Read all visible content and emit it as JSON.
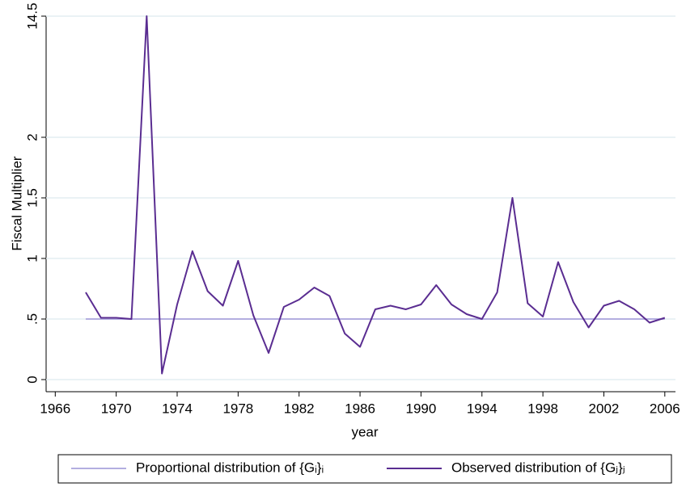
{
  "chart_data": {
    "type": "line",
    "x_label": "year",
    "y_label": "Fiscal Multiplier",
    "x": [
      1968,
      1969,
      1970,
      1971,
      1972,
      1973,
      1974,
      1975,
      1976,
      1977,
      1978,
      1979,
      1980,
      1981,
      1982,
      1983,
      1984,
      1985,
      1986,
      1987,
      1988,
      1989,
      1990,
      1991,
      1992,
      1993,
      1994,
      1995,
      1996,
      1997,
      1998,
      1999,
      2000,
      2001,
      2002,
      2003,
      2004,
      2005,
      2006
    ],
    "series": [
      {
        "name": "Proportional distribution of {Gᵢ}ᵢ",
        "color": "#b3aee0",
        "values": [
          0.5,
          0.5,
          0.5,
          0.5,
          0.5,
          0.5,
          0.5,
          0.5,
          0.5,
          0.5,
          0.5,
          0.5,
          0.5,
          0.5,
          0.5,
          0.5,
          0.5,
          0.5,
          0.5,
          0.5,
          0.5,
          0.5,
          0.5,
          0.5,
          0.5,
          0.5,
          0.5,
          0.5,
          0.5,
          0.5,
          0.5,
          0.5,
          0.5,
          0.5,
          0.5,
          0.5,
          0.5,
          0.5,
          0.5
        ]
      },
      {
        "name": "Observed distribution of {Gⱼ}ⱼ",
        "color": "#5a2d91",
        "values": [
          0.72,
          0.51,
          0.51,
          0.5,
          14.5,
          0.05,
          0.62,
          1.06,
          0.73,
          0.61,
          0.98,
          0.53,
          0.22,
          0.6,
          0.66,
          0.76,
          0.69,
          0.38,
          0.27,
          0.58,
          0.61,
          0.58,
          0.62,
          0.78,
          0.62,
          0.54,
          0.5,
          0.72,
          1.5,
          0.63,
          0.52,
          0.97,
          0.64,
          0.43,
          0.61,
          0.65,
          0.58,
          0.47,
          0.51
        ]
      }
    ],
    "xlim": [
      1965.4,
      2006.7
    ],
    "xticks": [
      1966,
      1970,
      1974,
      1978,
      1982,
      1986,
      1990,
      1994,
      1998,
      2002,
      2006
    ],
    "ylim": [
      -0.1,
      14.5
    ],
    "yticks": [
      0,
      {
        "value": 0.5,
        "label": ".5"
      },
      1,
      1.5,
      2,
      14.5
    ],
    "y_axis_break": true,
    "grid": true,
    "legend": "bottom"
  }
}
